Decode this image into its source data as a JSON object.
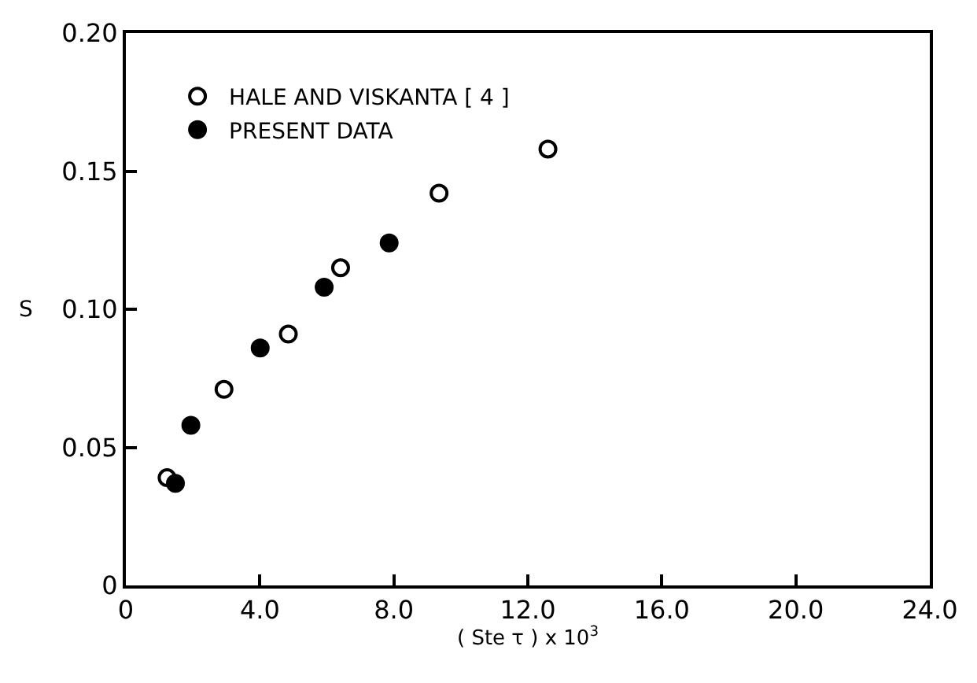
{
  "chart_data": {
    "type": "scatter",
    "xlabel": "( Ste τ ) x 10$^{3}$",
    "ylabel": "S",
    "xlim": [
      0,
      24
    ],
    "xticks": [
      0,
      {
        "value": 4,
        "label": "4.0"
      },
      {
        "value": 8,
        "label": "8.0"
      },
      {
        "value": 12,
        "label": "12.0"
      },
      {
        "value": 16,
        "label": "16.0"
      },
      {
        "value": 20,
        "label": "20.0"
      },
      {
        "value": 24,
        "label": "24.0"
      }
    ],
    "ylim": [
      0,
      0.2
    ],
    "yticks": [
      0,
      0.05,
      {
        "value": 0.1,
        "label": "0.10"
      },
      0.15,
      {
        "value": 0.2,
        "label": "0.20"
      }
    ],
    "grid": false,
    "legend": "top left",
    "series": [
      {
        "name": "HALE AND VISKANTA [ 4 ]",
        "color": "#000000",
        "marker": "circle-open",
        "x": [
          1.23,
          2.93,
          4.85,
          6.41,
          9.35,
          12.6
        ],
        "values": [
          0.039,
          0.071,
          0.091,
          0.115,
          0.142,
          0.158
        ]
      },
      {
        "name": "PRESENT DATA",
        "color": "#000000",
        "marker": "circle",
        "x": [
          1.48,
          1.94,
          4.01,
          5.92,
          7.86
        ],
        "values": [
          0.037,
          0.058,
          0.086,
          0.108,
          0.124
        ]
      }
    ]
  }
}
